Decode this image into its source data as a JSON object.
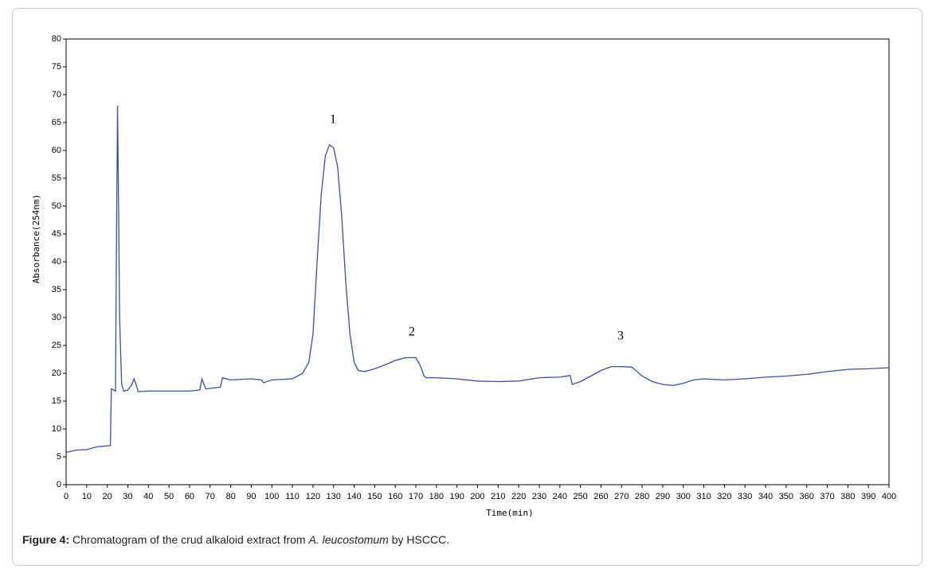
{
  "chart_data": {
    "type": "line",
    "xlabel": "Time(min)",
    "ylabel": "Absorbance(254nm)",
    "color": "#3b4f9e",
    "x": [
      0,
      5,
      10,
      15,
      21,
      21.5,
      22,
      23,
      24,
      24.5,
      25,
      25.5,
      26,
      27,
      28,
      30,
      32,
      33,
      34,
      35,
      40,
      50,
      60,
      65,
      66,
      67,
      68,
      75,
      76,
      80,
      90,
      95,
      96,
      100,
      110,
      115,
      118,
      120,
      122,
      124,
      126,
      128,
      130,
      132,
      134,
      136,
      138,
      140,
      142,
      145,
      150,
      155,
      160,
      165,
      170,
      172,
      174,
      175,
      180,
      190,
      200,
      210,
      220,
      230,
      240,
      245,
      246,
      250,
      255,
      260,
      265,
      270,
      275,
      280,
      285,
      290,
      295,
      300,
      305,
      310,
      320,
      330,
      340,
      350,
      360,
      370,
      380,
      390,
      400
    ],
    "values": [
      5.8,
      6.2,
      6.3,
      6.8,
      7.0,
      7.0,
      17.2,
      17,
      16.8,
      45,
      68,
      50,
      30,
      18,
      16.8,
      17,
      18,
      19,
      18,
      16.7,
      16.8,
      16.8,
      16.8,
      17,
      19,
      18,
      17.2,
      17.5,
      19.2,
      18.8,
      19,
      18.8,
      18.3,
      18.8,
      19,
      20,
      22,
      27,
      40,
      52,
      59,
      61,
      60.5,
      57,
      48,
      36,
      27,
      22,
      20.5,
      20.3,
      20.8,
      21.5,
      22.3,
      22.8,
      22.8,
      21.5,
      19.5,
      19.2,
      19.2,
      19,
      18.6,
      18.5,
      18.6,
      19.2,
      19.3,
      19.6,
      18,
      18.5,
      19.5,
      20.5,
      21.2,
      21.2,
      21.1,
      19.5,
      18.5,
      18,
      17.8,
      18.2,
      18.8,
      19,
      18.8,
      19,
      19.3,
      19.5,
      19.8,
      20.3,
      20.7,
      20.8,
      21
    ],
    "xlim": [
      0,
      400
    ],
    "xticks": [
      0,
      10,
      20,
      30,
      40,
      50,
      60,
      70,
      80,
      90,
      100,
      110,
      120,
      130,
      140,
      150,
      160,
      170,
      180,
      190,
      200,
      210,
      220,
      230,
      240,
      250,
      260,
      270,
      280,
      290,
      300,
      310,
      320,
      330,
      340,
      350,
      360,
      370,
      380,
      390,
      400
    ],
    "ylim": [
      0,
      80
    ],
    "yticks": [
      0,
      5,
      10,
      15,
      20,
      25,
      30,
      35,
      40,
      45,
      50,
      55,
      60,
      65,
      70,
      75,
      80
    ],
    "annotations": [
      "1",
      "2",
      "3"
    ]
  },
  "caption": {
    "label": "Figure 4:",
    "text1": " Chromatogram of the crud alkaloid extract from ",
    "species": "A. leucostomum",
    "text2": " by HSCCC."
  }
}
